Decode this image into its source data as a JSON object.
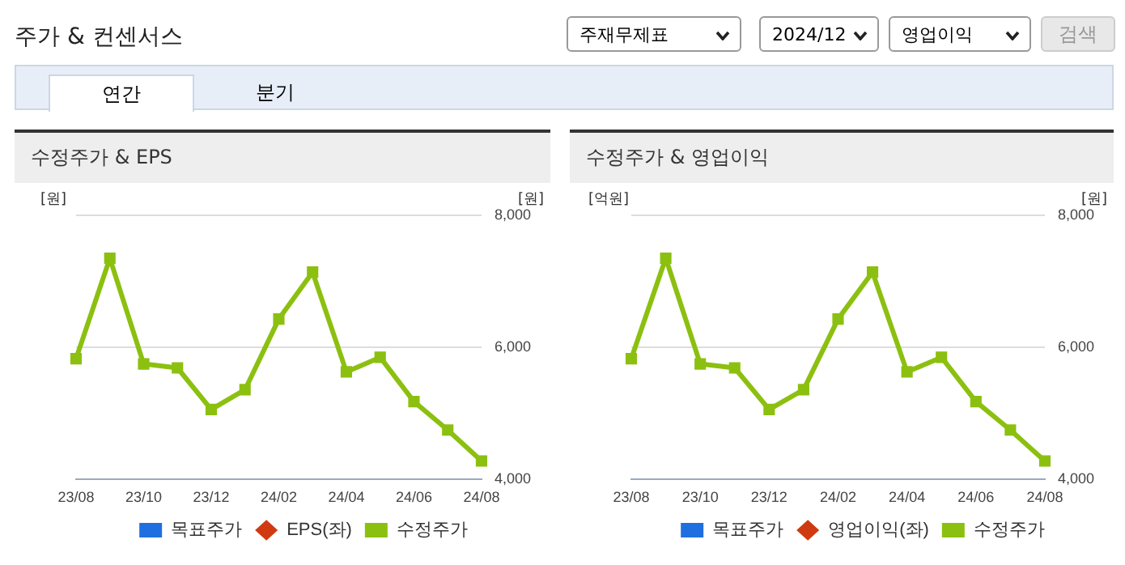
{
  "chart_data": [
    {
      "type": "other",
      "title": "주가 & 컨센서스",
      "annotations": [
        "주재무제표",
        "2024/12",
        "영업이익",
        "검색",
        "연간",
        "분기"
      ]
    },
    {
      "type": "line",
      "title": "수정주가 & EPS",
      "ylabel": "[원]",
      "y2label": "[원]",
      "categories": [
        "23/08",
        null,
        "23/10",
        null,
        "23/12",
        null,
        "24/02",
        null,
        "24/04",
        null,
        "24/06",
        null,
        "24/08"
      ],
      "y2lim": [
        4000,
        8000
      ],
      "y2ticks": [
        {
          "value": 4000,
          "label": "4,000"
        },
        {
          "value": 6000,
          "label": "6,000"
        },
        {
          "value": 8000,
          "label": "8,000"
        }
      ],
      "grid": "y",
      "legend": "bottom",
      "series": [
        {
          "name": "목표주가",
          "color": "#1f6fe0",
          "marker": "square",
          "values": [
            null,
            null,
            null,
            null,
            null,
            null,
            null,
            null,
            null,
            null,
            null,
            null,
            null
          ]
        },
        {
          "name": "EPS(좌)",
          "color": "#d03a10",
          "marker": "diamond",
          "values": [
            null,
            null,
            null,
            null,
            null,
            null,
            null,
            null,
            null,
            null,
            null,
            null,
            null
          ]
        },
        {
          "name": "수정주가",
          "color": "#8cc010",
          "marker": "square",
          "axis": "y2",
          "values": [
            5830,
            7350,
            5750,
            5690,
            5060,
            5360,
            6430,
            7140,
            5630,
            5850,
            5180,
            4750,
            4280
          ]
        }
      ]
    },
    {
      "type": "line",
      "title": "수정주가 & 영업이익",
      "ylabel": "[억원]",
      "y2label": "[원]",
      "categories": [
        "23/08",
        null,
        "23/10",
        null,
        "23/12",
        null,
        "24/02",
        null,
        "24/04",
        null,
        "24/06",
        null,
        "24/08"
      ],
      "y2lim": [
        4000,
        8000
      ],
      "y2ticks": [
        {
          "value": 4000,
          "label": "4,000"
        },
        {
          "value": 6000,
          "label": "6,000"
        },
        {
          "value": 8000,
          "label": "8,000"
        }
      ],
      "grid": "y",
      "legend": "bottom",
      "series": [
        {
          "name": "목표주가",
          "color": "#1f6fe0",
          "marker": "square",
          "values": [
            null,
            null,
            null,
            null,
            null,
            null,
            null,
            null,
            null,
            null,
            null,
            null,
            null
          ]
        },
        {
          "name": "영업이익(좌)",
          "color": "#d03a10",
          "marker": "diamond",
          "values": [
            null,
            null,
            null,
            null,
            null,
            null,
            null,
            null,
            null,
            null,
            null,
            null,
            null
          ]
        },
        {
          "name": "수정주가",
          "color": "#8cc010",
          "marker": "square",
          "axis": "y2",
          "values": [
            5830,
            7350,
            5750,
            5690,
            5060,
            5360,
            6430,
            7140,
            5630,
            5850,
            5180,
            4750,
            4280
          ]
        }
      ]
    }
  ]
}
